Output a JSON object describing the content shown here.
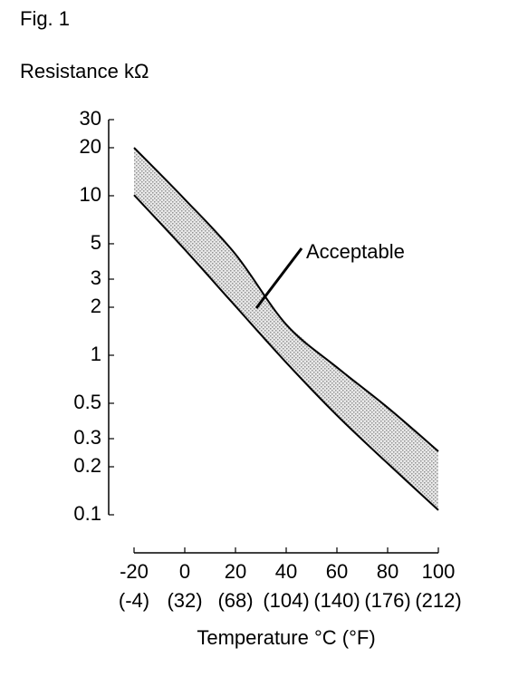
{
  "chart_data": {
    "type": "band",
    "title": "Fig. 1",
    "ylabel": "Resistance kΩ",
    "xlabel": "Temperature °C (°F)",
    "annotation": "Acceptable",
    "log_y": true,
    "xlim": [
      -20,
      100
    ],
    "xticks": [
      -20,
      0,
      20,
      40,
      60,
      80,
      100
    ],
    "xtick_sublabels": [
      "(-4)",
      "(32)",
      "(68)",
      "(104)",
      "(140)",
      "(176)",
      "(212)"
    ],
    "ylim": [
      0.1,
      30
    ],
    "yticks": [
      30,
      20,
      10,
      5,
      3,
      2,
      1,
      0.5,
      0.3,
      0.2,
      0.1
    ],
    "x": [
      -20,
      0,
      20,
      40,
      60,
      80,
      100
    ],
    "series": [
      {
        "color": "#000000",
        "values": [
          20,
          9.5,
          4.3,
          1.56,
          0.84,
          0.47,
          0.25
        ]
      },
      {
        "color": "#000000",
        "values": [
          10.1,
          4.6,
          2.03,
          0.9,
          0.42,
          0.21,
          0.107
        ]
      }
    ],
    "band_color": "#c8c8c8"
  }
}
